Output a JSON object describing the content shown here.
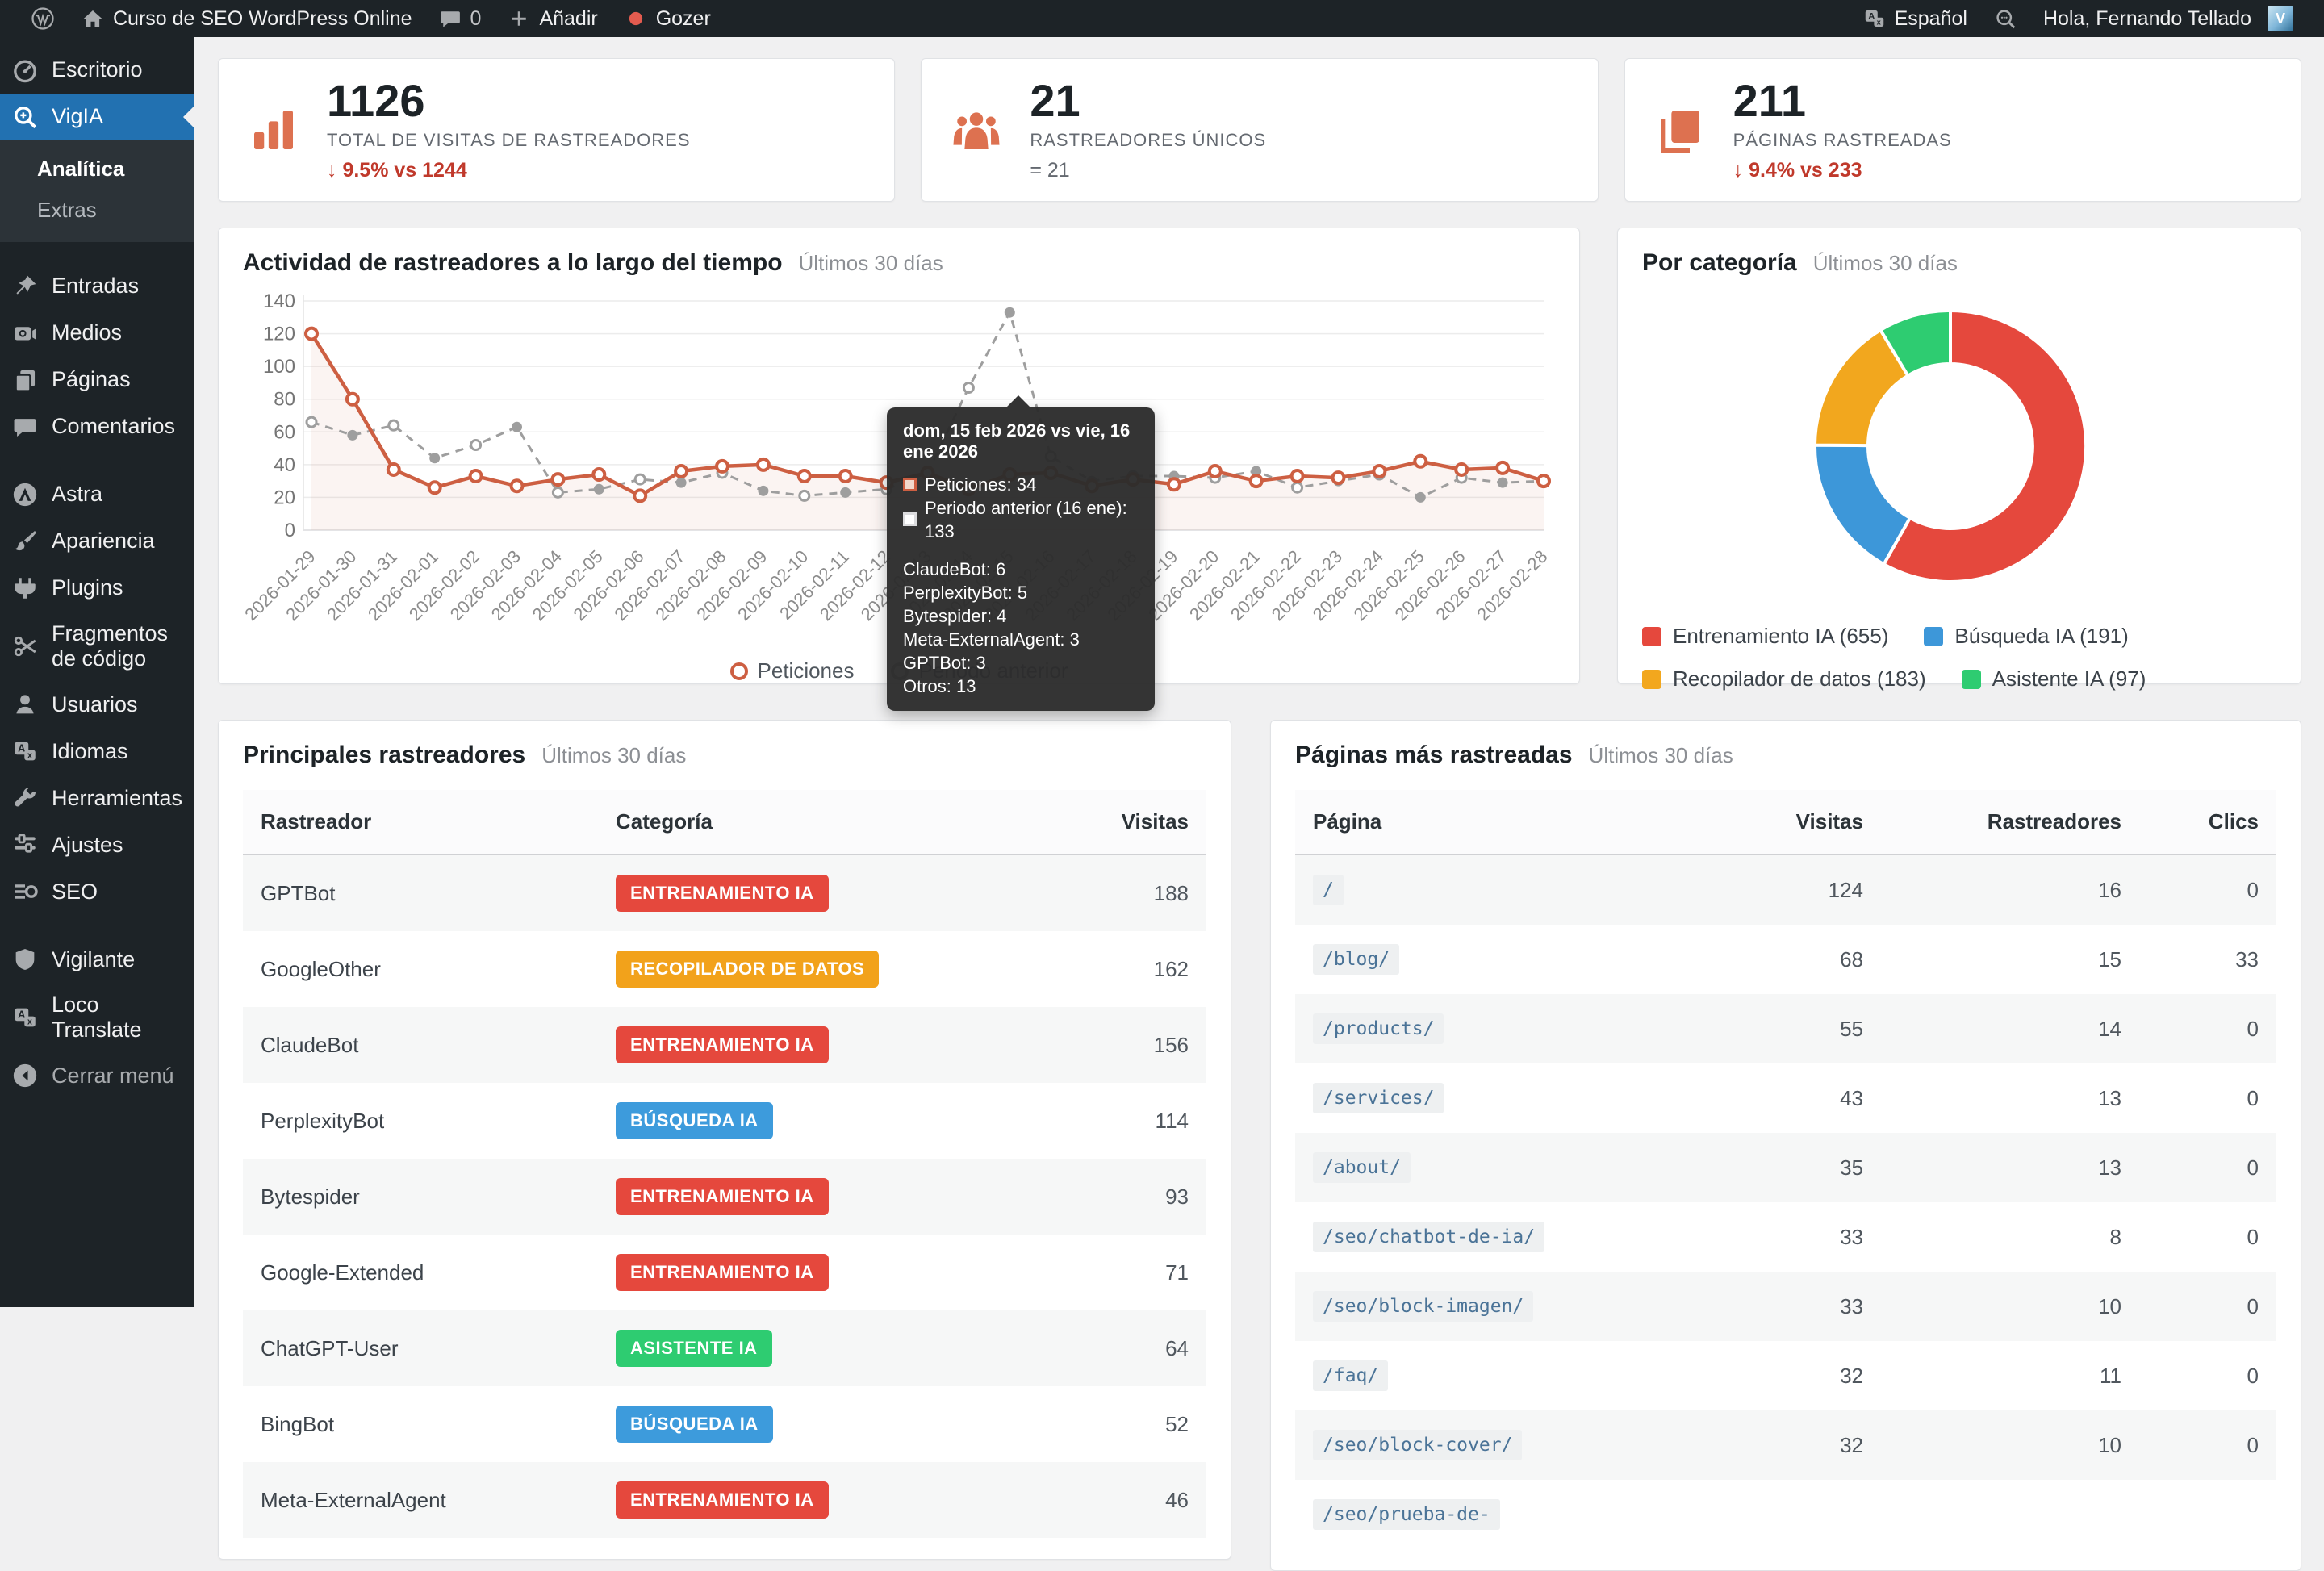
{
  "admin_bar": {
    "site_name": "Curso de SEO WordPress Online",
    "comments_count": "0",
    "new_label": "Añadir",
    "gozer_label": "Gozer",
    "language_label": "Español",
    "greeting": "Hola, Fernando Tellado",
    "avatar_initial": "V"
  },
  "sidebar": {
    "items": [
      {
        "label": "Escritorio",
        "icon": "dashboard"
      },
      {
        "label": "VigIA",
        "icon": "search-plus",
        "active": true,
        "submenu": [
          {
            "label": "Analítica",
            "current": true
          },
          {
            "label": "Extras",
            "current": false
          }
        ]
      },
      {
        "separator": true
      },
      {
        "label": "Entradas",
        "icon": "pin"
      },
      {
        "label": "Medios",
        "icon": "media"
      },
      {
        "label": "Páginas",
        "icon": "pages"
      },
      {
        "label": "Comentarios",
        "icon": "comment"
      },
      {
        "separator": true
      },
      {
        "label": "Astra",
        "icon": "astra"
      },
      {
        "label": "Apariencia",
        "icon": "brush"
      },
      {
        "label": "Plugins",
        "icon": "plugin"
      },
      {
        "label": "Fragmentos de código",
        "icon": "scissors"
      },
      {
        "label": "Usuarios",
        "icon": "user"
      },
      {
        "label": "Idiomas",
        "icon": "translate"
      },
      {
        "label": "Herramientas",
        "icon": "wrench"
      },
      {
        "label": "Ajustes",
        "icon": "sliders"
      },
      {
        "label": "SEO",
        "icon": "seo"
      },
      {
        "separator": true
      },
      {
        "label": "Vigilante",
        "icon": "shield"
      },
      {
        "label": "Loco Translate",
        "icon": "translate"
      },
      {
        "label": "Cerrar menú",
        "icon": "collapse",
        "muted": true
      }
    ]
  },
  "cards": [
    {
      "icon": "bar-chart",
      "value": "1126",
      "label": "TOTAL DE VISITAS DE RASTREADORES",
      "delta": "↓ 9.5% vs 1244",
      "delta_type": "down"
    },
    {
      "icon": "people",
      "value": "21",
      "label": "RASTREADORES ÚNICOS",
      "delta": "= 21",
      "delta_type": "neutral"
    },
    {
      "icon": "pages-stat",
      "value": "211",
      "label": "PÁGINAS RASTREADAS",
      "delta": "↓ 9.4% vs 233",
      "delta_type": "down"
    }
  ],
  "chart_data": [
    {
      "type": "line",
      "title": "Actividad de rastreadores a lo largo del tiempo",
      "subtitle": "Últimos 30 días",
      "x": [
        "2026-01-29",
        "2026-01-30",
        "2026-01-31",
        "2026-02-01",
        "2026-02-02",
        "2026-02-03",
        "2026-02-04",
        "2026-02-05",
        "2026-02-06",
        "2026-02-07",
        "2026-02-08",
        "2026-02-09",
        "2026-02-10",
        "2026-02-11",
        "2026-02-12",
        "2026-02-13",
        "2026-02-14",
        "2026-02-15",
        "2026-02-16",
        "2026-02-17",
        "2026-02-18",
        "2026-02-19",
        "2026-02-20",
        "2026-02-21",
        "2026-02-22",
        "2026-02-23",
        "2026-02-24",
        "2026-02-25",
        "2026-02-26",
        "2026-02-27",
        "2026-02-28"
      ],
      "series": [
        {
          "name": "Peticiones",
          "color": "#cd5f42",
          "style": "solid",
          "values": [
            120,
            80,
            37,
            26,
            33,
            27,
            31,
            34,
            21,
            36,
            39,
            40,
            33,
            33,
            29,
            35,
            25,
            34,
            35,
            27,
            31,
            28,
            36,
            30,
            33,
            32,
            36,
            42,
            37,
            38,
            30
          ]
        },
        {
          "name": "Periodo anterior",
          "color": "#9e9e9e",
          "style": "dashed",
          "values": [
            66,
            58,
            64,
            44,
            52,
            63,
            23,
            25,
            31,
            29,
            35,
            24,
            21,
            23,
            25,
            35,
            87,
            133,
            45,
            30,
            33,
            33,
            32,
            36,
            26,
            30,
            34,
            20,
            32,
            29,
            30
          ]
        }
      ],
      "ylim": [
        0,
        140
      ],
      "yticks": [
        0,
        20,
        40,
        60,
        80,
        100,
        120,
        140
      ],
      "grid": true,
      "legend_position": "bottom",
      "tooltip": {
        "title": "dom, 15 feb 2026 vs vie, 16 ene 2026",
        "rows": [
          {
            "swatch": "current",
            "text": "Peticiones: 34"
          },
          {
            "swatch": "previous",
            "text": "Periodo anterior (16 ene): 133"
          }
        ],
        "breakdown": [
          "ClaudeBot: 6",
          "PerplexityBot: 5",
          "Bytespider: 4",
          "Meta-ExternalAgent: 3",
          "GPTBot: 3",
          "Otros: 13"
        ]
      }
    },
    {
      "type": "donut",
      "title": "Por categoría",
      "subtitle": "Últimos 30 días",
      "slices": [
        {
          "label": "Entrenamiento IA",
          "value": 655,
          "color": "#e5483d"
        },
        {
          "label": "Búsqueda IA",
          "value": 191,
          "color": "#3d97d9"
        },
        {
          "label": "Recopilador de datos",
          "value": 183,
          "color": "#f2a71e"
        },
        {
          "label": "Asistente IA",
          "value": 97,
          "color": "#2ecc71"
        }
      ]
    }
  ],
  "category_colors": {
    "ENTRENAMIENTO IA": "#e5483d",
    "RECOPILADOR DE DATOS": "#f2a21b",
    "BÚSQUEDA IA": "#3d9bdc",
    "ASISTENTE IA": "#2ecc71"
  },
  "crawlers_table": {
    "title": "Principales rastreadores",
    "subtitle": "Últimos 30 días",
    "columns": [
      "Rastreador",
      "Categoría",
      "Visitas"
    ],
    "rows": [
      {
        "name": "GPTBot",
        "category": "ENTRENAMIENTO IA",
        "visits": "188"
      },
      {
        "name": "GoogleOther",
        "category": "RECOPILADOR DE DATOS",
        "visits": "162"
      },
      {
        "name": "ClaudeBot",
        "category": "ENTRENAMIENTO IA",
        "visits": "156"
      },
      {
        "name": "PerplexityBot",
        "category": "BÚSQUEDA IA",
        "visits": "114"
      },
      {
        "name": "Bytespider",
        "category": "ENTRENAMIENTO IA",
        "visits": "93"
      },
      {
        "name": "Google-Extended",
        "category": "ENTRENAMIENTO IA",
        "visits": "71"
      },
      {
        "name": "ChatGPT-User",
        "category": "ASISTENTE IA",
        "visits": "64"
      },
      {
        "name": "BingBot",
        "category": "BÚSQUEDA IA",
        "visits": "52"
      },
      {
        "name": "Meta-ExternalAgent",
        "category": "ENTRENAMIENTO IA",
        "visits": "46"
      }
    ]
  },
  "pages_table": {
    "title": "Páginas más rastreadas",
    "subtitle": "Últimos 30 días",
    "columns": [
      "Página",
      "Visitas",
      "Rastreadores",
      "Clics"
    ],
    "rows": [
      {
        "path": "/",
        "visits": "124",
        "crawlers": "16",
        "clicks": "0"
      },
      {
        "path": "/blog/",
        "visits": "68",
        "crawlers": "15",
        "clicks": "33"
      },
      {
        "path": "/products/",
        "visits": "55",
        "crawlers": "14",
        "clicks": "0"
      },
      {
        "path": "/services/",
        "visits": "43",
        "crawlers": "13",
        "clicks": "0"
      },
      {
        "path": "/about/",
        "visits": "35",
        "crawlers": "13",
        "clicks": "0"
      },
      {
        "path": "/seo/chatbot-de-ia/",
        "visits": "33",
        "crawlers": "8",
        "clicks": "0"
      },
      {
        "path": "/seo/block-imagen/",
        "visits": "33",
        "crawlers": "10",
        "clicks": "0"
      },
      {
        "path": "/faq/",
        "visits": "32",
        "crawlers": "11",
        "clicks": "0"
      },
      {
        "path": "/seo/block-cover/",
        "visits": "32",
        "crawlers": "10",
        "clicks": "0"
      },
      {
        "path": "/seo/prueba-de-",
        "visits": "",
        "crawlers": "",
        "clicks": ""
      }
    ]
  }
}
